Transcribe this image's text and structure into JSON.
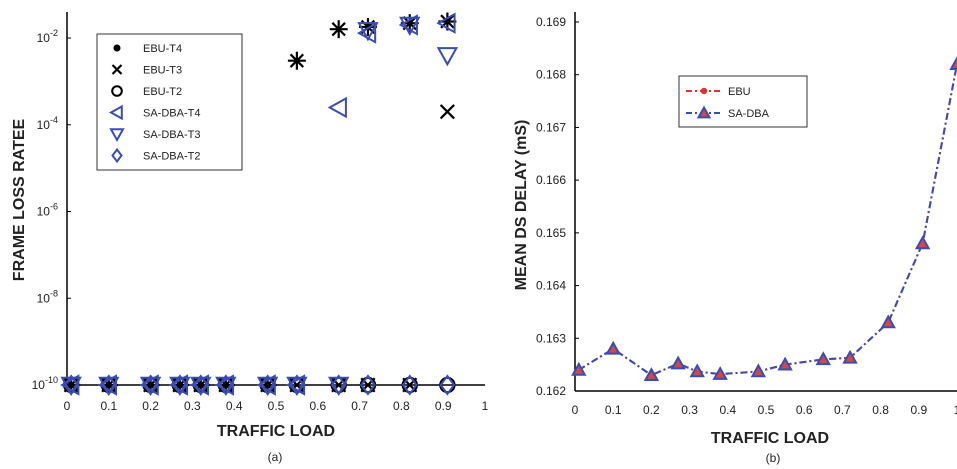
{
  "chart_data": [
    {
      "type": "scatter",
      "panel_label": "(a)",
      "xlabel": "TRAFFIC LOAD",
      "ylabel": "FRAME LOSS RATEE",
      "xlim": [
        0,
        1
      ],
      "ylim_log10": [
        -10,
        -1.4
      ],
      "y_scale": "log",
      "x_ticks": [
        "0",
        "0.1",
        "0.2",
        "0.3",
        "0.4",
        "0.5",
        "0.6",
        "0.7",
        "0.8",
        "0.9",
        "1"
      ],
      "y_ticks": [
        {
          "exp": -10,
          "base": "10",
          "sup": "-10"
        },
        {
          "exp": -8,
          "base": "10",
          "sup": "-8"
        },
        {
          "exp": -6,
          "base": "10",
          "sup": "-6"
        },
        {
          "exp": -4,
          "base": "10",
          "sup": "-4"
        },
        {
          "exp": -2,
          "base": "10",
          "sup": "-2"
        }
      ],
      "grid": false,
      "legend_position": "top-left",
      "colors": {
        "ebu": "#000000",
        "sa_dba": "#3b4db0"
      },
      "series": [
        {
          "name": "EBU-T4",
          "marker": "asterisk",
          "x": [
            0.01,
            0.1,
            0.2,
            0.27,
            0.32,
            0.38,
            0.48,
            0.55,
            0.65,
            0.72,
            0.82,
            0.91
          ],
          "y": [
            1e-10,
            1e-10,
            1e-10,
            1e-10,
            1e-10,
            1e-10,
            1e-10,
            0.003,
            0.016,
            0.018,
            0.022,
            0.024
          ]
        },
        {
          "name": "EBU-T3",
          "marker": "x",
          "x": [
            0.01,
            0.1,
            0.2,
            0.27,
            0.32,
            0.38,
            0.48,
            0.55,
            0.65,
            0.72,
            0.82,
            0.91
          ],
          "y": [
            1e-10,
            1e-10,
            1e-10,
            1e-10,
            1e-10,
            1e-10,
            1e-10,
            1e-10,
            1e-10,
            1e-10,
            1e-10,
            0.0002
          ]
        },
        {
          "name": "EBU-T2",
          "marker": "circle",
          "x": [
            0.01,
            0.1,
            0.2,
            0.27,
            0.32,
            0.38,
            0.48,
            0.55,
            0.65,
            0.72,
            0.82,
            0.91
          ],
          "y": [
            1e-10,
            1e-10,
            1e-10,
            1e-10,
            1e-10,
            1e-10,
            1e-10,
            1e-10,
            1e-10,
            1e-10,
            1e-10,
            1e-10
          ]
        },
        {
          "name": "SA-DBA-T4",
          "marker": "triangle-left",
          "x": [
            0.01,
            0.1,
            0.2,
            0.27,
            0.32,
            0.38,
            0.48,
            0.55,
            0.65,
            0.72,
            0.82,
            0.91
          ],
          "y": [
            1e-10,
            1e-10,
            1e-10,
            1e-10,
            1e-10,
            1e-10,
            1e-10,
            1e-10,
            0.00025,
            0.013,
            0.02,
            0.022
          ]
        },
        {
          "name": "SA-DBA-T3",
          "marker": "triangle-down",
          "x": [
            0.01,
            0.1,
            0.2,
            0.27,
            0.32,
            0.38,
            0.48,
            0.55,
            0.65,
            0.72,
            0.82,
            0.91
          ],
          "y": [
            1e-10,
            1e-10,
            1e-10,
            1e-10,
            1e-10,
            1e-10,
            1e-10,
            1e-10,
            1e-10,
            0.015,
            0.02,
            0.004
          ]
        },
        {
          "name": "SA-DBA-T2",
          "marker": "diamond",
          "x": [
            0.01,
            0.1,
            0.2,
            0.27,
            0.32,
            0.38,
            0.48,
            0.55,
            0.65,
            0.72,
            0.82,
            0.91
          ],
          "y": [
            1e-10,
            1e-10,
            1e-10,
            1e-10,
            1e-10,
            1e-10,
            1e-10,
            1e-10,
            1e-10,
            1e-10,
            1e-10,
            1e-10
          ]
        }
      ]
    },
    {
      "type": "line",
      "panel_label": "(b)",
      "xlabel": "TRAFFIC LOAD",
      "ylabel": "MEAN DS DELAY (mS)",
      "xlim": [
        0,
        1
      ],
      "ylim": [
        0.162,
        0.169
      ],
      "x_ticks": [
        "0",
        "0.1",
        "0.2",
        "0.3",
        "0.4",
        "0.5",
        "0.6",
        "0.7",
        "0.8",
        "0.9",
        "1"
      ],
      "y_ticks": [
        "0.162",
        "0.163",
        "0.164",
        "0.165",
        "0.166",
        "0.167",
        "0.168",
        "0.169"
      ],
      "grid": false,
      "legend_position": "top-center",
      "colors": {
        "ebu": "#e03030",
        "sa_dba": "#3b4db0"
      },
      "x": [
        0.01,
        0.1,
        0.2,
        0.27,
        0.32,
        0.38,
        0.48,
        0.55,
        0.65,
        0.72,
        0.82,
        0.91,
        1.0
      ],
      "series": [
        {
          "name": "EBU",
          "marker": "circle",
          "line": "dash-dot",
          "values": [
            0.1624,
            0.1628,
            0.1623,
            0.16252,
            0.16237,
            0.16232,
            0.16237,
            0.1625,
            0.1626,
            0.16263,
            0.1633,
            0.1648,
            0.1682
          ]
        },
        {
          "name": "SA-DBA",
          "marker": "triangle-up",
          "line": "dash-dot",
          "values": [
            0.1624,
            0.1628,
            0.1623,
            0.16252,
            0.16237,
            0.16232,
            0.16237,
            0.1625,
            0.1626,
            0.16263,
            0.1633,
            0.1648,
            0.1682
          ]
        }
      ]
    }
  ]
}
